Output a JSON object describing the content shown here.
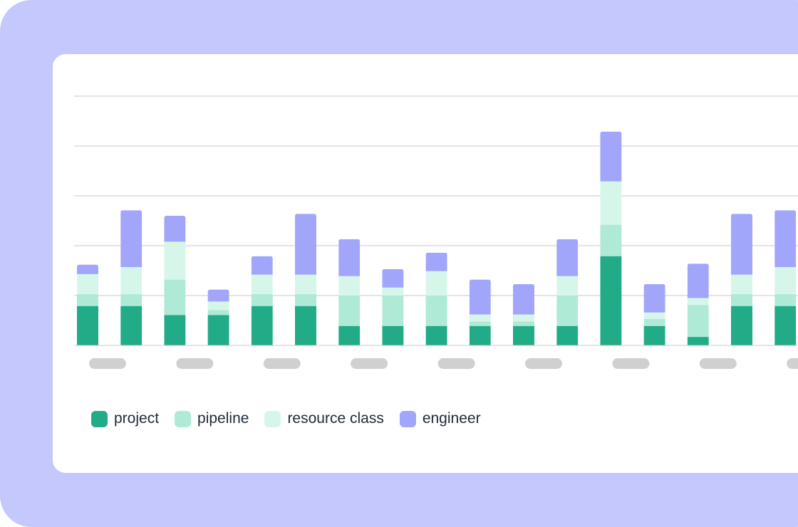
{
  "colors": {
    "frame": "#c5c8fd",
    "card": "#ffffff",
    "grid": "#c9c9c9",
    "tick_placeholder": "#d0d0d0"
  },
  "chart_data": {
    "type": "bar",
    "stacked": true,
    "title": "",
    "xlabel": "",
    "ylabel": "",
    "ylim": [
      0,
      5
    ],
    "grid": true,
    "gridlines": 5,
    "tick_labels": "redacted placeholder pills",
    "legend_position": "bottom-left",
    "categories": [
      "",
      "",
      "",
      "",
      "",
      "",
      "",
      "",
      "",
      "",
      "",
      "",
      "",
      "",
      "",
      "",
      ""
    ],
    "series": [
      {
        "name": "project",
        "color": "#21ab87",
        "values": [
          0.79,
          0.79,
          0.61,
          0.61,
          0.79,
          0.79,
          0.39,
          0.39,
          0.39,
          0.39,
          0.39,
          0.39,
          1.79,
          0.39,
          0.17,
          0.79,
          0.79
        ]
      },
      {
        "name": "pipeline",
        "color": "#aeead5",
        "values": [
          0.24,
          0.24,
          0.71,
          0.1,
          0.24,
          0.24,
          0.61,
          0.61,
          0.61,
          0.09,
          0.09,
          0.61,
          0.63,
          0.14,
          0.64,
          0.24,
          0.24
        ]
      },
      {
        "name": "resource class",
        "color": "#d7f6ea",
        "values": [
          0.4,
          0.54,
          0.76,
          0.17,
          0.39,
          0.39,
          0.39,
          0.16,
          0.49,
          0.14,
          0.14,
          0.39,
          0.87,
          0.13,
          0.14,
          0.39,
          0.54
        ]
      },
      {
        "name": "engineer",
        "color": "#a2a6fb",
        "values": [
          0.19,
          1.14,
          0.52,
          0.24,
          0.37,
          1.22,
          0.74,
          0.37,
          0.37,
          0.7,
          0.61,
          0.74,
          1.0,
          0.57,
          0.69,
          1.22,
          1.14
        ]
      }
    ]
  }
}
